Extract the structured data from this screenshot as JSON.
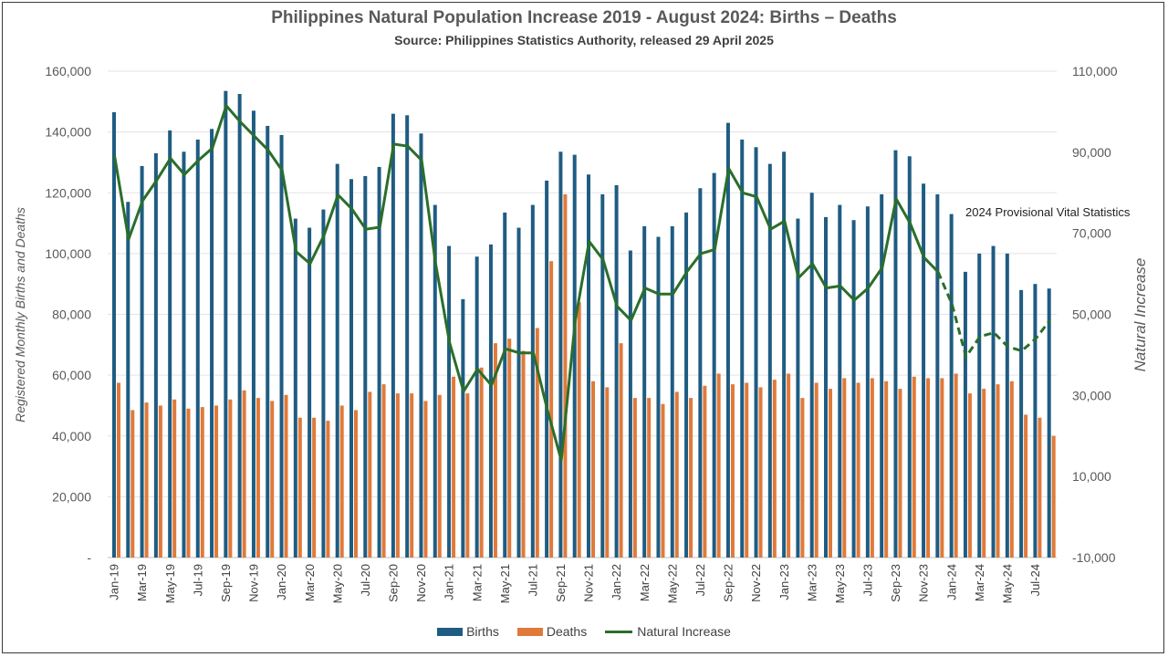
{
  "chart_data": {
    "type": "bar",
    "title": "Philippines Natural Population Increase 2019 - August 2024: Births – Deaths",
    "subtitle": "Source: Philippines Statistics Authority, released 29 April 2025",
    "ylabel": "Registered Monthly Births and Deaths",
    "y2label": "Natural Increase",
    "ylim": [
      0,
      160000
    ],
    "y2lim": [
      -10000,
      110000
    ],
    "yticks": [
      "-",
      "20,000",
      "40,000",
      "60,000",
      "80,000",
      "100,000",
      "120,000",
      "140,000",
      "160,000"
    ],
    "y2ticks": [
      "-10,000",
      "10,000",
      "30,000",
      "50,000",
      "70,000",
      "90,000",
      "110,000"
    ],
    "annotation": "2024 Provisional Vital Statistics",
    "categories": [
      "Jan-19",
      "Feb-19",
      "Mar-19",
      "Apr-19",
      "May-19",
      "Jun-19",
      "Jul-19",
      "Aug-19",
      "Sep-19",
      "Oct-19",
      "Nov-19",
      "Dec-19",
      "Jan-20",
      "Feb-20",
      "Mar-20",
      "Apr-20",
      "May-20",
      "Jun-20",
      "Jul-20",
      "Aug-20",
      "Sep-20",
      "Oct-20",
      "Nov-20",
      "Dec-20",
      "Jan-21",
      "Feb-21",
      "Mar-21",
      "Apr-21",
      "May-21",
      "Jun-21",
      "Jul-21",
      "Aug-21",
      "Sep-21",
      "Oct-21",
      "Nov-21",
      "Dec-21",
      "Jan-22",
      "Feb-22",
      "Mar-22",
      "Apr-22",
      "May-22",
      "Jun-22",
      "Jul-22",
      "Aug-22",
      "Sep-22",
      "Oct-22",
      "Nov-22",
      "Dec-22",
      "Jan-23",
      "Feb-23",
      "Mar-23",
      "Apr-23",
      "May-23",
      "Jun-23",
      "Jul-23",
      "Aug-23",
      "Sep-23",
      "Oct-23",
      "Nov-23",
      "Dec-23",
      "Jan-24",
      "Feb-24",
      "Mar-24",
      "Apr-24",
      "May-24",
      "Jun-24",
      "Jul-24",
      "Aug-24"
    ],
    "xtick_labels": [
      "Jan-19",
      "Mar-19",
      "May-19",
      "Jul-19",
      "Sep-19",
      "Nov-19",
      "Jan-20",
      "Mar-20",
      "May-20",
      "Jul-20",
      "Sep-20",
      "Nov-20",
      "Jan-21",
      "Mar-21",
      "May-21",
      "Jul-21",
      "Sep-21",
      "Nov-21",
      "Jan-22",
      "Mar-22",
      "May-22",
      "Jul-22",
      "Sep-22",
      "Nov-22",
      "Jan-23",
      "Mar-23",
      "May-23",
      "Jul-23",
      "Sep-23",
      "Nov-23",
      "Jan-24",
      "Mar-24",
      "May-24",
      "Jul-24"
    ],
    "series": [
      {
        "name": "Births",
        "axis": "left",
        "kind": "bar",
        "color": "#1f5c82",
        "values": [
          146500,
          117000,
          128800,
          133000,
          140500,
          133500,
          137500,
          141000,
          153500,
          152500,
          147000,
          142000,
          139000,
          111500,
          108500,
          114500,
          129500,
          124500,
          125500,
          128500,
          146000,
          145500,
          139500,
          116000,
          102500,
          85000,
          99000,
          103000,
          113500,
          108500,
          116000,
          124000,
          133500,
          132500,
          126000,
          119500,
          122500,
          101000,
          109000,
          105500,
          109000,
          113500,
          121500,
          126500,
          143000,
          137500,
          135000,
          129500,
          133500,
          111500,
          120000,
          112000,
          116000,
          111000,
          115500,
          119500,
          134000,
          132000,
          123000,
          119500,
          113000,
          94000,
          100000,
          102500,
          100000,
          88000,
          90000,
          88500
        ]
      },
      {
        "name": "Deaths",
        "axis": "left",
        "kind": "bar",
        "color": "#e07a3a",
        "values": [
          57500,
          48500,
          51000,
          50000,
          52000,
          49000,
          49500,
          50000,
          52000,
          55000,
          52500,
          51500,
          53500,
          46000,
          46000,
          45000,
          50000,
          48500,
          54500,
          57000,
          54000,
          54000,
          51500,
          53500,
          59500,
          54000,
          62500,
          70500,
          72000,
          68000,
          75500,
          97500,
          119500,
          84000,
          58000,
          56000,
          70500,
          52500,
          52500,
          50500,
          54500,
          52500,
          56500,
          60500,
          57000,
          57500,
          56000,
          58500,
          60500,
          52500,
          57500,
          55500,
          59000,
          57500,
          59000,
          58000,
          55500,
          59500,
          59000,
          59000,
          60500,
          54000,
          55500,
          57000,
          58000,
          47000,
          46000,
          40000
        ]
      },
      {
        "name": "Natural Increase",
        "axis": "right",
        "kind": "line",
        "color": "#2a6e2a",
        "provisional_from": "Dec-23",
        "values": [
          89000,
          68500,
          78000,
          83000,
          88500,
          84500,
          88000,
          91000,
          101500,
          97500,
          94000,
          90500,
          85500,
          65500,
          62500,
          69500,
          79500,
          76000,
          71000,
          71500,
          92000,
          91500,
          88000,
          62500,
          43000,
          31000,
          36500,
          32500,
          41500,
          40500,
          40500,
          26500,
          14000,
          48500,
          68000,
          63500,
          52000,
          48500,
          56500,
          55000,
          55000,
          60500,
          65000,
          66000,
          86000,
          80000,
          79000,
          71000,
          73000,
          59000,
          62500,
          56500,
          57000,
          53500,
          56500,
          61500,
          78500,
          72500,
          64000,
          60500,
          52500,
          39500,
          44500,
          45500,
          42000,
          41000,
          44000,
          48500
        ]
      }
    ],
    "grid": true,
    "legend": "bottom"
  }
}
